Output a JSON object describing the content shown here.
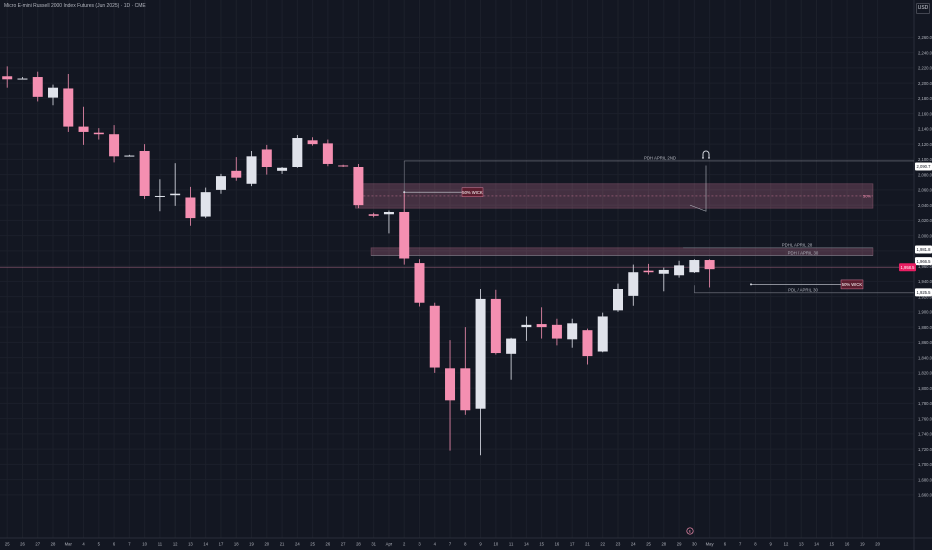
{
  "header": {
    "title": "Micro E-mini Russell 2000 Index Futures (Jun 2025) · 1D · CME"
  },
  "currency_button": "USD",
  "chart_data": {
    "type": "candlestick",
    "title": "Micro E-mini Russell 2000 Index Futures (Jun 2025) · 1D · CME",
    "ylim": [
      1650,
      2290
    ],
    "y_ticks": [
      "2,260.0",
      "2,240.0",
      "2,220.0",
      "2,200.0",
      "2,180.0",
      "2,160.0",
      "2,140.0",
      "2,120.0",
      "2,100.0",
      "2,080.0",
      "2,060.0",
      "2,040.0",
      "2,020.0",
      "2,000.0",
      "1,980.0",
      "1,960.0",
      "1,940.0",
      "1,920.0",
      "1,900.0",
      "1,880.0",
      "1,860.0",
      "1,840.0",
      "1,820.0",
      "1,800.0",
      "1,780.0",
      "1,760.0",
      "1,740.0",
      "1,720.0",
      "1,700.0",
      "1,680.0",
      "1,660.0"
    ],
    "x_labels": [
      "25",
      "26",
      "27",
      "28",
      "Mar",
      "4",
      "5",
      "6",
      "7",
      "10",
      "11",
      "12",
      "13",
      "14",
      "17",
      "18",
      "19",
      "20",
      "21",
      "24",
      "25",
      "26",
      "27",
      "28",
      "31",
      "Apr",
      "2",
      "3",
      "4",
      "7",
      "8",
      "9",
      "10",
      "11",
      "14",
      "15",
      "16",
      "17",
      "21",
      "22",
      "23",
      "24",
      "25",
      "28",
      "29",
      "30",
      "May",
      "6",
      "7",
      "8",
      "9",
      "12",
      "13",
      "14",
      "15",
      "16",
      "19",
      "20"
    ],
    "candles": [
      {
        "o": 2209,
        "h": 2222,
        "l": 2194,
        "c": 2205
      },
      {
        "o": 2205,
        "h": 2208,
        "l": 2206,
        "c": 2206
      },
      {
        "o": 2208,
        "h": 2215,
        "l": 2176,
        "c": 2182
      },
      {
        "o": 2181,
        "h": 2198,
        "l": 2171,
        "c": 2194
      },
      {
        "o": 2193,
        "h": 2212,
        "l": 2136,
        "c": 2143
      },
      {
        "o": 2143,
        "h": 2169,
        "l": 2119,
        "c": 2136
      },
      {
        "o": 2135,
        "h": 2141,
        "l": 2126,
        "c": 2133
      },
      {
        "o": 2133,
        "h": 2145,
        "l": 2096,
        "c": 2104
      },
      {
        "o": 2105,
        "h": 2106,
        "l": 2104,
        "c": 2105
      },
      {
        "o": 2111,
        "h": 2120,
        "l": 2048,
        "c": 2052
      },
      {
        "o": 2052,
        "h": 2074,
        "l": 2032,
        "c": 2052
      },
      {
        "o": 2053,
        "h": 2095,
        "l": 2039,
        "c": 2055
      },
      {
        "o": 2050,
        "h": 2064,
        "l": 2013,
        "c": 2023
      },
      {
        "o": 2025,
        "h": 2063,
        "l": 2023,
        "c": 2057
      },
      {
        "o": 2060,
        "h": 2081,
        "l": 2055,
        "c": 2078
      },
      {
        "o": 2085,
        "h": 2103,
        "l": 2072,
        "c": 2076
      },
      {
        "o": 2068,
        "h": 2111,
        "l": 2065,
        "c": 2104
      },
      {
        "o": 2113,
        "h": 2119,
        "l": 2080,
        "c": 2090
      },
      {
        "o": 2085,
        "h": 2090,
        "l": 2081,
        "c": 2089
      },
      {
        "o": 2090,
        "h": 2132,
        "l": 2089,
        "c": 2128
      },
      {
        "o": 2125,
        "h": 2129,
        "l": 2118,
        "c": 2120
      },
      {
        "o": 2121,
        "h": 2126,
        "l": 2091,
        "c": 2094
      },
      {
        "o": 2092,
        "h": 2093,
        "l": 2090,
        "c": 2091
      },
      {
        "o": 2090,
        "h": 2094,
        "l": 2036,
        "c": 2040
      },
      {
        "o": 2028,
        "h": 2030,
        "l": 2024,
        "c": 2026
      },
      {
        "o": 2028,
        "h": 2033,
        "l": 2003,
        "c": 2031
      },
      {
        "o": 2031,
        "h": 2056,
        "l": 1962,
        "c": 1970
      },
      {
        "o": 1964,
        "h": 1969,
        "l": 1907,
        "c": 1912
      },
      {
        "o": 1908,
        "h": 1912,
        "l": 1820,
        "c": 1827
      },
      {
        "o": 1826,
        "h": 1863,
        "l": 1718,
        "c": 1784
      },
      {
        "o": 1826,
        "h": 1880,
        "l": 1765,
        "c": 1771
      },
      {
        "o": 1773,
        "h": 1930,
        "l": 1712,
        "c": 1917
      },
      {
        "o": 1917,
        "h": 1929,
        "l": 1844,
        "c": 1846
      },
      {
        "o": 1845,
        "h": 1866,
        "l": 1811,
        "c": 1865
      },
      {
        "o": 1880,
        "h": 1894,
        "l": 1862,
        "c": 1883
      },
      {
        "o": 1884,
        "h": 1906,
        "l": 1865,
        "c": 1880
      },
      {
        "o": 1883,
        "h": 1891,
        "l": 1856,
        "c": 1865
      },
      {
        "o": 1864,
        "h": 1891,
        "l": 1853,
        "c": 1885
      },
      {
        "o": 1876,
        "h": 1878,
        "l": 1831,
        "c": 1842
      },
      {
        "o": 1848,
        "h": 1899,
        "l": 1847,
        "c": 1894
      },
      {
        "o": 1902,
        "h": 1937,
        "l": 1900,
        "c": 1930
      },
      {
        "o": 1921,
        "h": 1962,
        "l": 1908,
        "c": 1952
      },
      {
        "o": 1954,
        "h": 1963,
        "l": 1949,
        "c": 1952
      },
      {
        "o": 1950,
        "h": 1958,
        "l": 1927,
        "c": 1955
      },
      {
        "o": 1948,
        "h": 1967,
        "l": 1945,
        "c": 1961
      },
      {
        "o": 1952,
        "h": 1969,
        "l": 1951,
        "c": 1968
      },
      {
        "o": 1968,
        "h": 1969,
        "l": 1932,
        "c": 1956
      }
    ],
    "colors": {
      "up": "#e0e3eb",
      "down": "#f48fb1",
      "bg": "#131722",
      "grid": "#1c202b",
      "axis_text": "#b2b5be"
    },
    "current_price": {
      "value": 1958.5,
      "label": "1,958.5"
    },
    "price_tags": [
      {
        "label": "2,090.7",
        "value": 2090.7,
        "color": "#ffffff"
      },
      {
        "label": "1,981.8",
        "value": 1981.8,
        "color": "#ffffff"
      },
      {
        "label": "1,966.5",
        "value": 1966.5,
        "color": "#ffffff"
      },
      {
        "label": "1,925.5",
        "value": 1925.5,
        "color": "#ffffff"
      }
    ],
    "zones": [
      {
        "from": 2036,
        "to": 2068,
        "label": "50%",
        "color": "#f48fb1"
      },
      {
        "from": 1974,
        "to": 1984,
        "label": "",
        "color": "#f48fb1"
      }
    ],
    "levels": [
      {
        "value": 2098,
        "label": "PDH APRIL 2ND"
      },
      {
        "value": 1984,
        "label": "PDHL APRIL 28"
      },
      {
        "value": 1974,
        "label": "PDH / APRIL 30"
      },
      {
        "value": 1925,
        "label": "PDL / APRIL 30"
      }
    ],
    "wick_marks": [
      {
        "value": 2057,
        "label": "50% WICK"
      },
      {
        "value": 1936,
        "label": "50% WICK"
      }
    ],
    "projection_path": [
      {
        "x": 45,
        "y": 2040
      },
      {
        "x": 46,
        "y": 2032
      },
      {
        "x": 46,
        "y": 2092
      }
    ],
    "event_marker": "E",
    "magnet_icon": "magnet-icon"
  }
}
